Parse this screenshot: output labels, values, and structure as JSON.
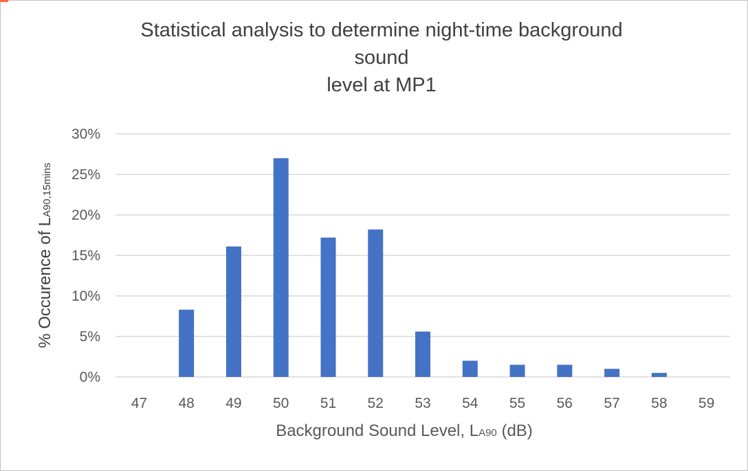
{
  "chart_data": {
    "type": "bar",
    "title_lines": [
      "Statistical analysis to determine night-time background",
      "sound",
      "level at MP1"
    ],
    "ylabel": {
      "main": "% Occurence of L",
      "subscript": "A90,15mins"
    },
    "xlabel": {
      "pre": "Background Sound Level, L",
      "sub": "A90",
      "post": " (dB)"
    },
    "categories": [
      "47",
      "48",
      "49",
      "50",
      "51",
      "52",
      "53",
      "54",
      "55",
      "56",
      "57",
      "58",
      "59"
    ],
    "values": [
      0.0,
      8.3,
      16.1,
      27.0,
      17.2,
      18.2,
      5.6,
      2.0,
      1.5,
      1.5,
      1.0,
      0.5,
      0.0
    ],
    "ylim": [
      0,
      30
    ],
    "yticks": [
      0,
      5,
      10,
      15,
      20,
      25,
      30
    ],
    "ytick_labels": [
      "0%",
      "5%",
      "10%",
      "15%",
      "20%",
      "25%",
      "30%"
    ],
    "grid": true,
    "legend": "none",
    "bar_color": "#4472c4",
    "grid_color": "#d9d9d9",
    "axis_color": "#d9d9d9"
  }
}
